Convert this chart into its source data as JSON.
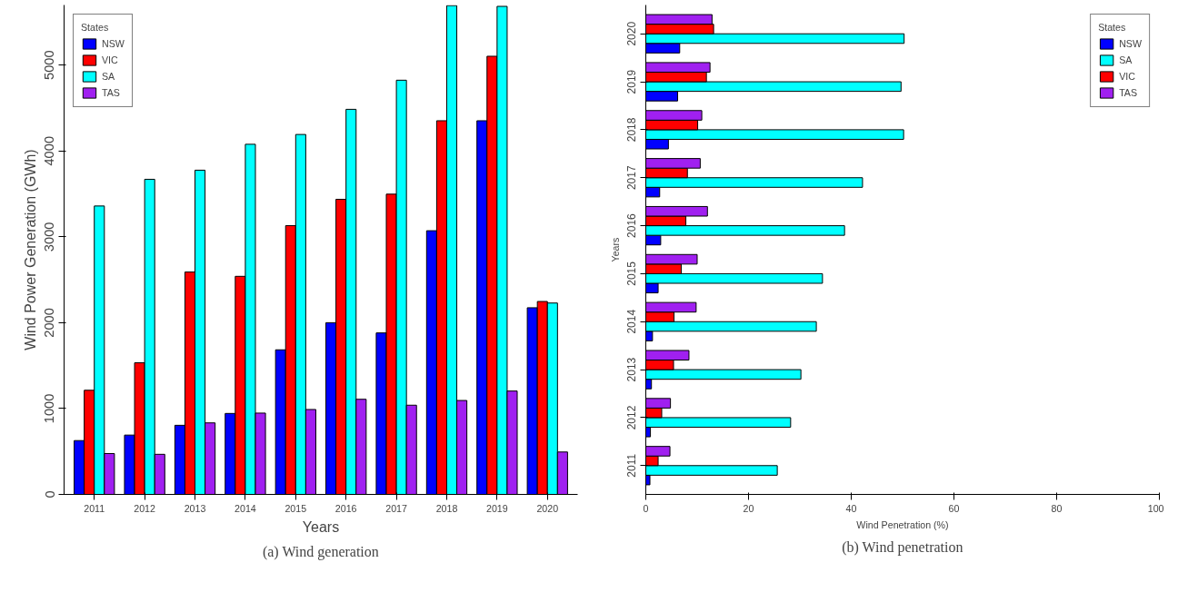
{
  "chart_data": [
    {
      "type": "bar",
      "ylabel": "Wind Power Generation (GWh)",
      "xlabel": "Years",
      "legend_title": "States",
      "legend": "top left",
      "grid": false,
      "categories": [
        "2011",
        "2012",
        "2013",
        "2014",
        "2015",
        "2016",
        "2017",
        "2018",
        "2019",
        "2020"
      ],
      "ylim": [
        0,
        5700
      ],
      "yticks": [
        0,
        1000,
        2000,
        3000,
        4000,
        5000
      ],
      "annotations": [
        "(a) Wind generation"
      ],
      "series": [
        {
          "name": "NSW",
          "color": "#0000ff",
          "values": [
            627,
            691,
            805,
            943,
            1684,
            2000,
            1881,
            3071,
            4352,
            2174
          ]
        },
        {
          "name": "VIC",
          "color": "#ff0000",
          "values": [
            1213,
            1533,
            2590,
            2540,
            3130,
            3437,
            3497,
            4352,
            5103,
            2247
          ]
        },
        {
          "name": "SA",
          "color": "#00ffff",
          "values": [
            3359,
            3670,
            3776,
            4078,
            4192,
            4485,
            4824,
            5693,
            5684,
            2229
          ]
        },
        {
          "name": "TAS",
          "color": "#a020f0",
          "values": [
            476,
            467,
            833,
            947,
            989,
            1108,
            1039,
            1094,
            1204,
            494
          ]
        }
      ]
    },
    {
      "type": "bar",
      "orientation": "horizontal",
      "xlabel": "Wind Penetration (%)",
      "ylabel": "Years",
      "legend_title": "States",
      "legend": "top right",
      "grid": false,
      "categories": [
        "2020",
        "2019",
        "2018",
        "2017",
        "2016",
        "2015",
        "2014",
        "2013",
        "2012",
        "2011"
      ],
      "xlim": [
        0,
        100
      ],
      "xticks": [
        0,
        20,
        40,
        60,
        80,
        100
      ],
      "annotations": [
        "(b) Wind penetration"
      ],
      "series": [
        {
          "name": "NSW",
          "color": "#0000ff",
          "values": [
            6.6,
            6.2,
            4.4,
            2.7,
            2.9,
            2.4,
            1.3,
            1.1,
            0.9,
            0.8
          ]
        },
        {
          "name": "SA",
          "color": "#00ffff",
          "values": [
            50.3,
            49.7,
            50.2,
            42.2,
            38.7,
            34.4,
            33.2,
            30.2,
            28.2,
            25.6
          ]
        },
        {
          "name": "VIC",
          "color": "#ff0000",
          "values": [
            13.2,
            11.8,
            10.1,
            8.1,
            7.8,
            6.9,
            5.5,
            5.4,
            3.1,
            2.4
          ]
        },
        {
          "name": "TAS",
          "color": "#a020f0",
          "values": [
            12.9,
            12.5,
            10.9,
            10.6,
            12.0,
            10.0,
            9.8,
            8.4,
            4.8,
            4.7
          ]
        }
      ]
    }
  ]
}
